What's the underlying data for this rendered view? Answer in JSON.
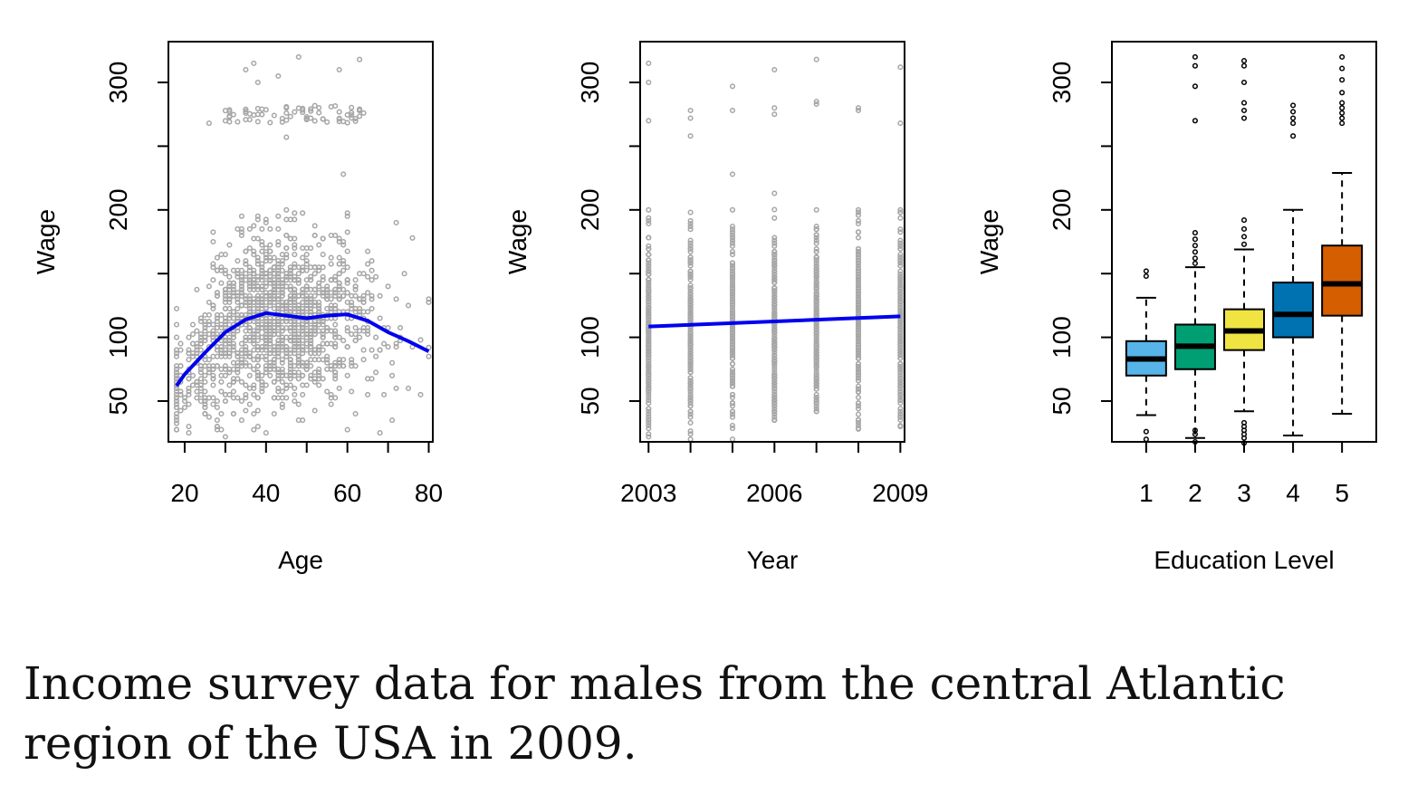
{
  "caption": "Income survey data for males from the central Atlantic region of the USA in 2009.",
  "colors": {
    "points": "#a6a6a6",
    "fit_line": "#0000ee",
    "box_fills": [
      "#56b4e9",
      "#009e73",
      "#f0e442",
      "#0072b2",
      "#d55e00"
    ]
  },
  "chart_data": [
    {
      "type": "scatter",
      "xlabel": "Age",
      "ylabel": "Wage",
      "xlim": [
        16,
        81
      ],
      "ylim": [
        18,
        332
      ],
      "xticks": [
        20,
        30,
        40,
        50,
        60,
        70,
        80
      ],
      "xtick_labels": [
        "20",
        "",
        "40",
        "",
        "60",
        "",
        "80"
      ],
      "yticks": [
        50,
        100,
        150,
        200,
        250,
        300
      ],
      "ytick_labels": [
        "50",
        "100",
        "",
        "200",
        "",
        "300"
      ],
      "grid": false,
      "density_note": "approx. 3000 points, dense cloud from age 20-60 around wage 50-200, sparse high-earner band near 270-280",
      "outlier_points": [
        {
          "x": 35,
          "y": 310
        },
        {
          "x": 37,
          "y": 315
        },
        {
          "x": 38,
          "y": 300
        },
        {
          "x": 43,
          "y": 305
        },
        {
          "x": 48,
          "y": 320
        },
        {
          "x": 58,
          "y": 310
        },
        {
          "x": 63,
          "y": 318
        },
        {
          "x": 26,
          "y": 268
        },
        {
          "x": 45,
          "y": 257
        },
        {
          "x": 59,
          "y": 228
        },
        {
          "x": 72,
          "y": 190
        },
        {
          "x": 76,
          "y": 178
        },
        {
          "x": 74,
          "y": 150
        },
        {
          "x": 78,
          "y": 98
        },
        {
          "x": 80,
          "y": 92
        },
        {
          "x": 72,
          "y": 60
        },
        {
          "x": 78,
          "y": 55
        },
        {
          "x": 21,
          "y": 30
        },
        {
          "x": 30,
          "y": 22
        },
        {
          "x": 62,
          "y": 40
        }
      ],
      "series": [
        {
          "type": "line",
          "x": [
            18,
            20,
            25,
            30,
            35,
            40,
            45,
            50,
            55,
            60,
            65,
            70,
            75,
            80
          ],
          "y": [
            62,
            71,
            88,
            104,
            114,
            119,
            117,
            115,
            117,
            118,
            113,
            104,
            97,
            89
          ]
        }
      ]
    },
    {
      "type": "scatter",
      "xlabel": "Year",
      "ylabel": "Wage",
      "xlim": [
        2002.8,
        2009.1
      ],
      "ylim": [
        18,
        332
      ],
      "xticks": [
        2003,
        2004,
        2005,
        2006,
        2007,
        2008,
        2009
      ],
      "xtick_labels": [
        "2003",
        "",
        "",
        "2006",
        "",
        "",
        "2009"
      ],
      "yticks": [
        50,
        100,
        150,
        200,
        250,
        300
      ],
      "ytick_labels": [
        "50",
        "100",
        "",
        "200",
        "",
        "300"
      ],
      "grid": false,
      "columns": [
        {
          "x": 2003,
          "low": 22,
          "high": 200,
          "outliers": [
            270,
            300,
            315
          ]
        },
        {
          "x": 2004,
          "low": 20,
          "high": 198,
          "outliers": [
            258,
            272,
            278
          ]
        },
        {
          "x": 2005,
          "low": 20,
          "high": 200,
          "outliers": [
            228,
            278,
            297
          ]
        },
        {
          "x": 2006,
          "low": 35,
          "high": 213,
          "outliers": [
            275,
            280,
            310
          ]
        },
        {
          "x": 2007,
          "low": 42,
          "high": 200,
          "outliers": [
            283,
            285,
            318
          ]
        },
        {
          "x": 2008,
          "low": 28,
          "high": 200,
          "outliers": [
            278,
            280
          ]
        },
        {
          "x": 2009,
          "low": 30,
          "high": 200,
          "outliers": [
            268,
            312
          ]
        }
      ],
      "series": [
        {
          "type": "line",
          "x": [
            2003,
            2009
          ],
          "y": [
            108.5,
            116.5
          ]
        }
      ]
    },
    {
      "type": "box",
      "xlabel": "Education Level",
      "ylabel": "Wage",
      "xlim": [
        0.3,
        5.7
      ],
      "ylim": [
        18,
        332
      ],
      "categories": [
        "1",
        "2",
        "3",
        "4",
        "5"
      ],
      "yticks": [
        50,
        100,
        150,
        200,
        250,
        300
      ],
      "ytick_labels": [
        "50",
        "100",
        "",
        "200",
        "",
        "300"
      ],
      "grid": false,
      "boxes": [
        {
          "whislo": 39,
          "q1": 70,
          "med": 83,
          "q3": 97,
          "whishi": 131,
          "fliers": [
            20,
            26,
            148,
            152
          ]
        },
        {
          "whislo": 21,
          "q1": 75,
          "med": 93,
          "q3": 110,
          "whishi": 155,
          "fliers": [
            18,
            24,
            27,
            158,
            162,
            167,
            172,
            177,
            182,
            270,
            297,
            313,
            320
          ]
        },
        {
          "whislo": 42,
          "q1": 90,
          "med": 105,
          "q3": 122,
          "whishi": 169,
          "fliers": [
            17,
            21,
            24,
            27,
            30,
            33,
            173,
            179,
            185,
            192,
            272,
            278,
            284,
            300,
            313,
            317
          ]
        },
        {
          "whislo": 23,
          "q1": 100,
          "med": 118,
          "q3": 143,
          "whishi": 200,
          "fliers": [
            258,
            268,
            272,
            277,
            282
          ]
        },
        {
          "whislo": 40,
          "q1": 117,
          "med": 142,
          "q3": 172,
          "whishi": 229,
          "fliers": [
            268,
            272,
            276,
            280,
            284,
            292,
            302,
            311,
            320
          ]
        }
      ]
    }
  ]
}
